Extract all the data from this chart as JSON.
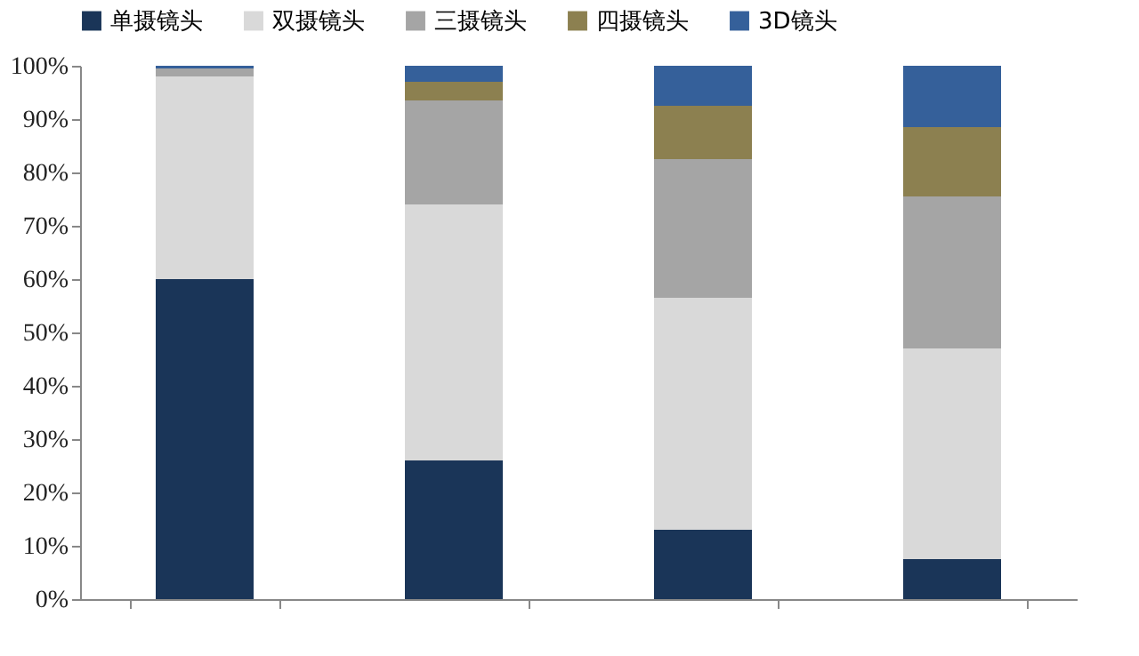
{
  "chart_data": {
    "type": "bar",
    "stacked": true,
    "categories": [
      null,
      null,
      null,
      null
    ],
    "series": [
      {
        "name": "单摄镜头",
        "color": "#1a3558",
        "values": [
          60,
          26,
          13,
          7.5
        ]
      },
      {
        "name": "双摄镜头",
        "color": "#d9d9d9",
        "values": [
          38,
          48,
          43.5,
          39.5
        ]
      },
      {
        "name": "三摄镜头",
        "color": "#a5a5a5",
        "values": [
          1.5,
          19.5,
          26,
          28.5
        ]
      },
      {
        "name": "四摄镜头",
        "color": "#8c8050",
        "values": [
          0,
          3.5,
          10,
          13
        ]
      },
      {
        "name": "3D镜头",
        "color": "#35609a",
        "values": [
          0.5,
          3,
          7.5,
          11.5
        ]
      }
    ],
    "ylim": [
      0,
      100
    ],
    "yticks": [
      {
        "value": 0,
        "label": "0%"
      },
      {
        "value": 10,
        "label": "10%"
      },
      {
        "value": 20,
        "label": "20%"
      },
      {
        "value": 30,
        "label": "30%"
      },
      {
        "value": 40,
        "label": "40%"
      },
      {
        "value": 50,
        "label": "50%"
      },
      {
        "value": 60,
        "label": "60%"
      },
      {
        "value": 70,
        "label": "70%"
      },
      {
        "value": 80,
        "label": "80%"
      },
      {
        "value": 90,
        "label": "90%"
      },
      {
        "value": 100,
        "label": "100%"
      }
    ],
    "tick_labels": "y",
    "legend": "top",
    "grid": false
  }
}
